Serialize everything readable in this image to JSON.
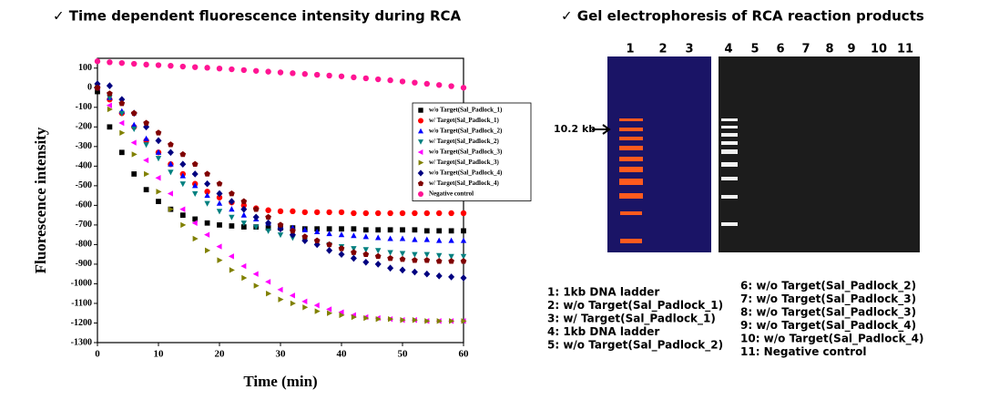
{
  "chart_data": {
    "type": "scatter",
    "title": "✓ Time dependent fluorescence intensity during RCA",
    "x_label": "Time (min)",
    "y_label": "Fluorescence intensity",
    "xlim": [
      0,
      60
    ],
    "xticks": [
      0,
      10,
      20,
      30,
      40,
      50,
      60
    ],
    "ylim": [
      -1300,
      150
    ],
    "yticks": [
      -1300,
      -1200,
      -1100,
      -1000,
      -900,
      -800,
      -700,
      -600,
      -500,
      -400,
      -300,
      -200,
      -100,
      0,
      100
    ],
    "x": [
      0,
      2,
      4,
      6,
      8,
      10,
      12,
      14,
      16,
      18,
      20,
      22,
      24,
      26,
      28,
      30,
      32,
      34,
      36,
      38,
      40,
      42,
      44,
      46,
      48,
      50,
      52,
      54,
      56,
      58,
      60
    ],
    "series": [
      {
        "name": "w/o Target(Sal_Padlock_1)",
        "color": "#000000",
        "marker": "square",
        "values": [
          -20,
          -200,
          -330,
          -440,
          -520,
          -580,
          -620,
          -650,
          -670,
          -690,
          -700,
          -705,
          -710,
          -710,
          -715,
          -715,
          -715,
          -720,
          -720,
          -720,
          -720,
          -720,
          -725,
          -725,
          -725,
          -725,
          -725,
          -730,
          -730,
          -730,
          -730
        ]
      },
      {
        "name": "w/ Target(Sal_Padlock_1)",
        "color": "#ff0000",
        "marker": "circle",
        "values": [
          0,
          -60,
          -130,
          -200,
          -270,
          -330,
          -390,
          -440,
          -490,
          -530,
          -560,
          -585,
          -600,
          -615,
          -625,
          -630,
          -630,
          -635,
          -635,
          -635,
          -635,
          -640,
          -640,
          -640,
          -640,
          -640,
          -640,
          -640,
          -640,
          -640,
          -640
        ]
      },
      {
        "name": "w/o Target(Sal_Padlock_2)",
        "color": "#0000ff",
        "marker": "triangle-up",
        "values": [
          0,
          -50,
          -120,
          -190,
          -260,
          -330,
          -390,
          -450,
          -500,
          -550,
          -590,
          -620,
          -650,
          -670,
          -690,
          -705,
          -715,
          -725,
          -735,
          -745,
          -750,
          -755,
          -760,
          -765,
          -770,
          -770,
          -775,
          -775,
          -780,
          -780,
          -780
        ]
      },
      {
        "name": "w/ Target(Sal_Padlock_2)",
        "color": "#008080",
        "marker": "triangle-down",
        "values": [
          0,
          -50,
          -130,
          -210,
          -290,
          -360,
          -430,
          -490,
          -540,
          -590,
          -630,
          -660,
          -690,
          -710,
          -730,
          -750,
          -765,
          -780,
          -790,
          -800,
          -810,
          -820,
          -825,
          -830,
          -840,
          -845,
          -850,
          -850,
          -855,
          -860,
          -860
        ]
      },
      {
        "name": "w/o Target(Sal_Padlock_3)",
        "color": "#ff00ff",
        "marker": "triangle-left",
        "values": [
          0,
          -90,
          -180,
          -280,
          -370,
          -460,
          -540,
          -620,
          -690,
          -750,
          -810,
          -860,
          -910,
          -950,
          -990,
          -1030,
          -1060,
          -1090,
          -1110,
          -1130,
          -1145,
          -1160,
          -1170,
          -1175,
          -1180,
          -1185,
          -1185,
          -1190,
          -1190,
          -1190,
          -1190
        ]
      },
      {
        "name": "w/ Target(Sal_Padlock_3)",
        "color": "#808000",
        "marker": "triangle-right",
        "values": [
          0,
          -110,
          -230,
          -340,
          -440,
          -530,
          -620,
          -700,
          -770,
          -830,
          -880,
          -930,
          -970,
          -1010,
          -1050,
          -1080,
          -1100,
          -1120,
          -1140,
          -1150,
          -1160,
          -1170,
          -1175,
          -1180,
          -1180,
          -1185,
          -1185,
          -1190,
          -1190,
          -1190,
          -1190
        ]
      },
      {
        "name": "w/o Target(Sal_Padlock_4)",
        "color": "#000080",
        "marker": "diamond",
        "values": [
          20,
          10,
          -60,
          -130,
          -200,
          -270,
          -330,
          -390,
          -440,
          -490,
          -540,
          -580,
          -620,
          -660,
          -690,
          -720,
          -750,
          -780,
          -800,
          -830,
          -850,
          -870,
          -890,
          -900,
          -920,
          -930,
          -940,
          -950,
          -960,
          -965,
          -970
        ]
      },
      {
        "name": "w/ Target(Sal_Padlock_4)",
        "color": "#800000",
        "marker": "pentagon",
        "values": [
          0,
          -30,
          -80,
          -130,
          -180,
          -230,
          -290,
          -340,
          -390,
          -440,
          -490,
          -540,
          -580,
          -620,
          -660,
          -700,
          -730,
          -760,
          -780,
          -800,
          -820,
          -840,
          -850,
          -860,
          -870,
          -875,
          -880,
          -880,
          -885,
          -885,
          -885
        ]
      },
      {
        "name": "Negative control",
        "color": "#ff1493",
        "marker": "circle",
        "values": [
          135,
          130,
          126,
          122,
          118,
          115,
          112,
          108,
          105,
          102,
          98,
          94,
          90,
          86,
          82,
          78,
          74,
          70,
          66,
          62,
          58,
          53,
          48,
          43,
          38,
          32,
          26,
          20,
          14,
          8,
          0
        ]
      }
    ]
  },
  "gel": {
    "title": "✓ Gel electrophoresis of RCA reaction products",
    "lanes": [
      "1",
      "2",
      "3",
      "4",
      "5",
      "6",
      "7",
      "8",
      "9",
      "10",
      "11"
    ],
    "marker_label": "10.2 kb",
    "legend_left": [
      "1: 1kb DNA ladder",
      "2: w/o Target(Sal_Padlock_1)",
      "3: w/ Target(Sal_Padlock_1)",
      "4: 1kb DNA ladder",
      "5: w/o Target(Sal_Padlock_2)"
    ],
    "legend_right": [
      "6: w/o Target(Sal_Padlock_2)",
      "7: w/o Target(Sal_Padlock_3)",
      "8: w/o Target(Sal_Padlock_3)",
      "9: w/o Target(Sal_Padlock_4)",
      "10: w/o Target(Sal_Padlock_4)",
      "11: Negative control"
    ]
  }
}
